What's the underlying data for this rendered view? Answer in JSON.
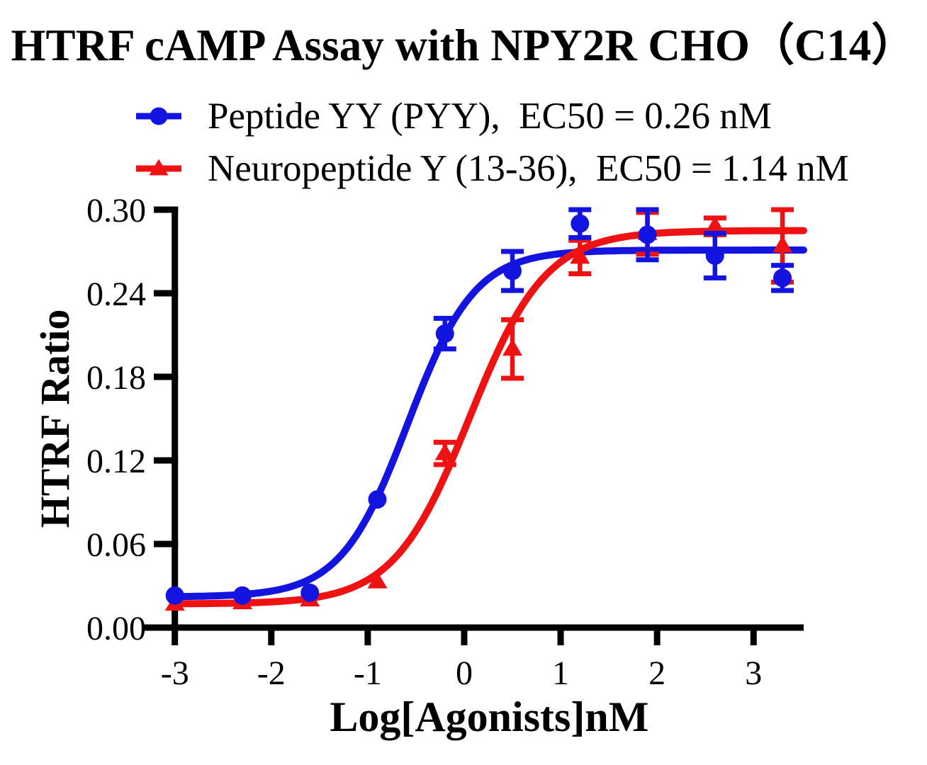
{
  "figure": {
    "background": "#ffffff",
    "text_color": "#000000"
  },
  "chart_data": {
    "type": "line",
    "title": "HTRF cAMP Assay with NPY2R CHO（C14）",
    "xlabel": "Log[Agonists]nM",
    "ylabel": "HTRF Ratio",
    "xlim": [
      -3,
      3.52
    ],
    "ylim": [
      0,
      0.3
    ],
    "x_ticks": [
      -3,
      -2,
      -1,
      0,
      1,
      2,
      3
    ],
    "y_ticks": [
      {
        "value": 0.0,
        "label": "0.00"
      },
      {
        "value": 0.06,
        "label": "0.06"
      },
      {
        "value": 0.12,
        "label": "0.12"
      },
      {
        "value": 0.18,
        "label": "0.18"
      },
      {
        "value": 0.24,
        "label": "0.24"
      },
      {
        "value": 0.3,
        "label": "0.30"
      }
    ],
    "grid": false,
    "legend_position": "top-left",
    "axis_color": "#000000",
    "series": [
      {
        "name": "Peptide YY (PYY),  EC50 = 0.26 nM",
        "ec50_nM": 0.26,
        "color": "#1414e0",
        "marker": "circle",
        "x": [
          -3,
          -2.3,
          -1.6,
          -0.9,
          -0.2,
          0.5,
          1.2,
          1.9,
          2.6,
          3.3
        ],
        "y": [
          0.023,
          0.023,
          0.025,
          0.092,
          0.211,
          0.256,
          0.29,
          0.282,
          0.267,
          0.251
        ],
        "y_err": [
          0,
          0,
          0,
          0,
          0.011,
          0.014,
          0.01,
          0.018,
          0.016,
          0.009
        ],
        "fit_curve": {
          "model": "4PL",
          "bottom": 0.022,
          "top": 0.271,
          "logEC50": -0.585,
          "hill": 1.25
        }
      },
      {
        "name": "Neuropeptide Y (13-36),  EC50 = 1.14 nM",
        "ec50_nM": 1.14,
        "color": "#ee1212",
        "marker": "triangle",
        "x": [
          -3,
          -2.3,
          -1.6,
          -0.9,
          -0.2,
          0.5,
          1.2,
          1.9,
          2.6,
          3.3
        ],
        "y": [
          0.017,
          0.018,
          0.02,
          0.033,
          0.125,
          0.2,
          0.266,
          0.283,
          0.288,
          0.274
        ],
        "y_err": [
          0,
          0,
          0,
          0,
          0.008,
          0.021,
          0.012,
          0.015,
          0.006,
          0.026
        ],
        "fit_curve": {
          "model": "4PL",
          "bottom": 0.017,
          "top": 0.285,
          "logEC50": 0.057,
          "hill": 1.1
        }
      }
    ]
  }
}
